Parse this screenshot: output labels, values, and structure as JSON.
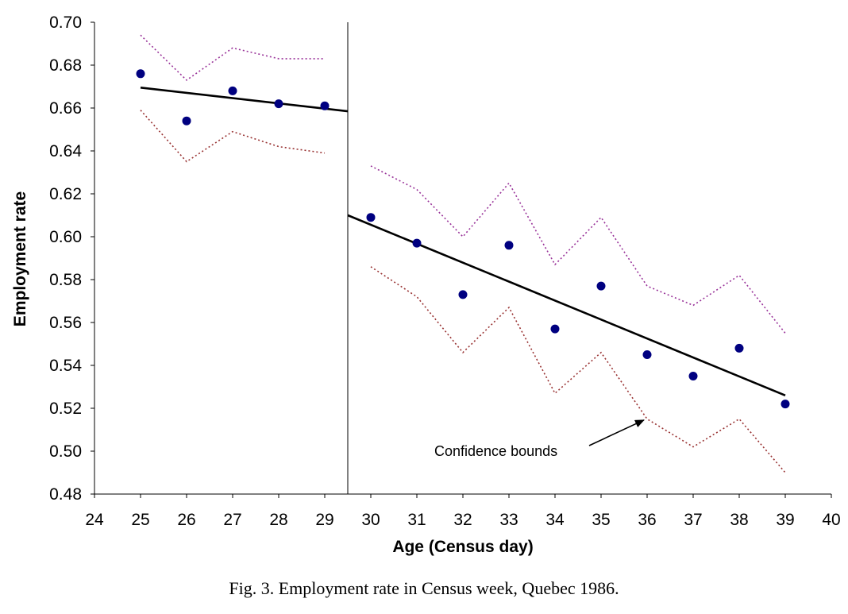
{
  "caption": "Fig. 3. Employment rate in Census week, Quebec 1986.",
  "chart_data": {
    "type": "scatter",
    "xlabel": "Age (Census day)",
    "ylabel": "Employment rate",
    "xlim": [
      24,
      40
    ],
    "ylim": [
      0.48,
      0.7
    ],
    "xticks": [
      24,
      25,
      26,
      27,
      28,
      29,
      30,
      31,
      32,
      33,
      34,
      35,
      36,
      37,
      38,
      39,
      40
    ],
    "yticks": [
      0.48,
      0.5,
      0.52,
      0.54,
      0.56,
      0.58,
      0.6,
      0.62,
      0.64,
      0.66,
      0.68,
      0.7
    ],
    "grid": false,
    "legend": "none",
    "discontinuity_x": 29.5,
    "points": {
      "x": [
        25,
        26,
        27,
        28,
        29,
        30,
        31,
        32,
        33,
        34,
        35,
        36,
        37,
        38,
        39
      ],
      "y": [
        0.676,
        0.654,
        0.668,
        0.662,
        0.661,
        0.609,
        0.597,
        0.573,
        0.596,
        0.557,
        0.577,
        0.545,
        0.535,
        0.548,
        0.522
      ]
    },
    "fit_lines": [
      {
        "x": [
          25,
          29.5
        ],
        "y": [
          0.6695,
          0.6585
        ]
      },
      {
        "x": [
          29.5,
          39
        ],
        "y": [
          0.61,
          0.526
        ]
      }
    ],
    "upper_bounds": [
      {
        "x": [
          25,
          26,
          27,
          28,
          29
        ],
        "y": [
          0.694,
          0.673,
          0.688,
          0.683,
          0.683
        ]
      },
      {
        "x": [
          30,
          31,
          32,
          33,
          34,
          35,
          36,
          37,
          38,
          39
        ],
        "y": [
          0.633,
          0.622,
          0.6,
          0.625,
          0.587,
          0.609,
          0.577,
          0.568,
          0.582,
          0.555
        ]
      }
    ],
    "lower_bounds": [
      {
        "x": [
          25,
          26,
          27,
          28,
          29
        ],
        "y": [
          0.659,
          0.635,
          0.649,
          0.642,
          0.639
        ]
      },
      {
        "x": [
          30,
          31,
          32,
          33,
          34,
          35,
          36,
          37,
          38,
          39
        ],
        "y": [
          0.586,
          0.572,
          0.546,
          0.567,
          0.527,
          0.546,
          0.515,
          0.502,
          0.515,
          0.49
        ]
      }
    ],
    "annotation": {
      "text": "Confidence bounds",
      "arrow_target": {
        "x": 36,
        "y": 0.516
      }
    },
    "colors": {
      "points": "#000080",
      "fit": "#000000",
      "upper_bound": "#993399",
      "lower_bound": "#993333",
      "axis": "#000000"
    }
  }
}
